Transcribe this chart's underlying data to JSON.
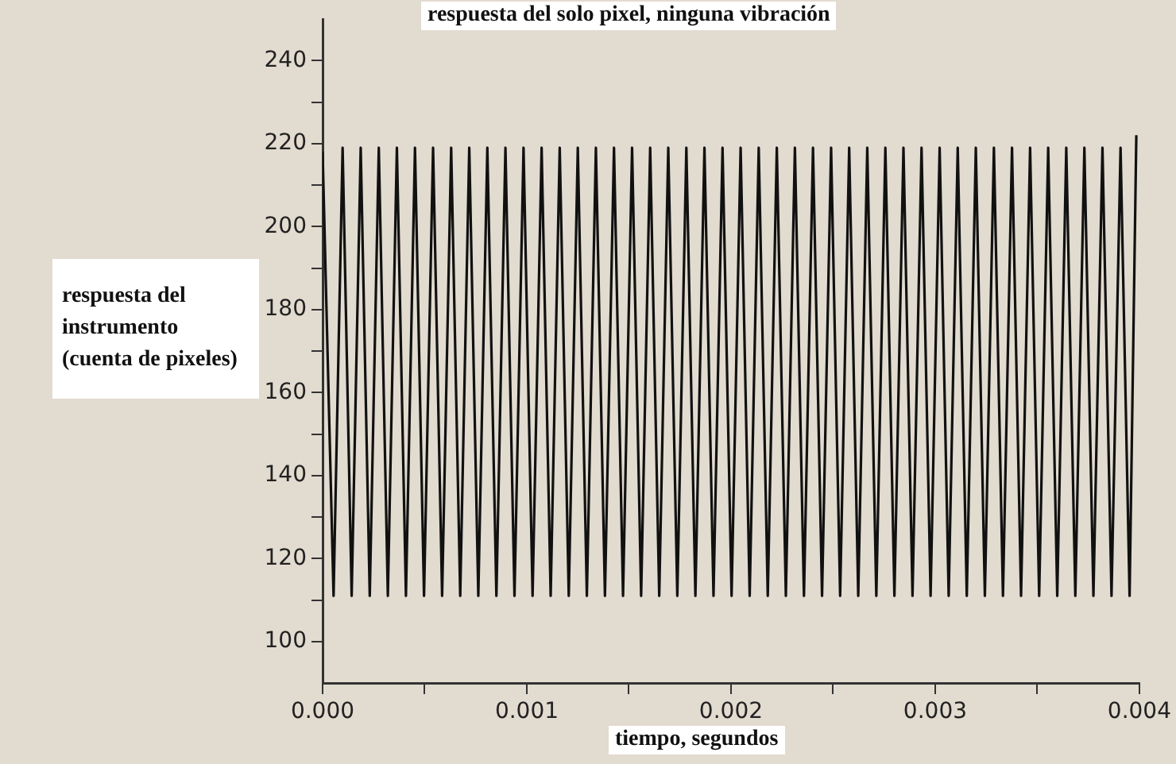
{
  "chart_data": {
    "type": "line",
    "title": "respuesta del solo pixel, ninguna vibración",
    "xlabel": "tiempo, segundos",
    "ylabel": "respuesta del instrumento (cuenta de pixeles)",
    "x": [
      0,
      5.37e-05,
      9.8e-05,
      0.0001423,
      0.0001866,
      0.0002309,
      0.0002752,
      0.0003195,
      0.0003638,
      0.0004081,
      0.0004524,
      0.0004967,
      0.000541,
      0.0005853,
      0.0006296,
      0.0006739,
      0.0007182,
      0.0007625,
      0.0008068,
      0.0008511,
      0.0008954,
      0.0009397,
      0.000984,
      0.0010283,
      0.0010726,
      0.0011169,
      0.0011612,
      0.0012055,
      0.0012498,
      0.0012941,
      0.0013384,
      0.0013827,
      0.001427,
      0.0014713,
      0.0015156,
      0.0015599,
      0.0016042,
      0.0016485,
      0.0016928,
      0.0017371,
      0.0017814,
      0.0018257,
      0.00187,
      0.0019143,
      0.0019586,
      0.0020029,
      0.0020472,
      0.0020915,
      0.0021358,
      0.0021801,
      0.0022244,
      0.0022687,
      0.002313,
      0.0023573,
      0.0024016,
      0.0024459,
      0.0024902,
      0.0025345,
      0.0025788,
      0.0026231,
      0.0026674,
      0.0027117,
      0.002756,
      0.0028003,
      0.0028446,
      0.0028889,
      0.0029332,
      0.0029775,
      0.0030218,
      0.0030661,
      0.0031104,
      0.0031547,
      0.003199,
      0.0032433,
      0.0032876,
      0.0033319,
      0.0033762,
      0.0034205,
      0.0034648,
      0.0035091,
      0.0035534,
      0.0035977,
      0.003642,
      0.0036863,
      0.0037306,
      0.0037749,
      0.0038192,
      0.0038635,
      0.0039078,
      0.003952,
      0.003985
    ],
    "values": [
      218,
      111,
      219,
      111,
      219,
      111,
      219,
      111,
      219,
      111,
      219,
      111,
      219,
      111,
      219,
      111,
      219,
      111,
      219,
      111,
      219,
      111,
      219,
      111,
      219,
      111,
      219,
      111,
      219,
      111,
      219,
      111,
      219,
      111,
      219,
      111,
      219,
      111,
      219,
      111,
      219,
      111,
      219,
      111,
      219,
      111,
      219,
      111,
      219,
      111,
      219,
      111,
      219,
      111,
      219,
      111,
      219,
      111,
      219,
      111,
      219,
      111,
      219,
      111,
      219,
      111,
      219,
      111,
      219,
      111,
      219,
      111,
      219,
      111,
      219,
      111,
      219,
      111,
      219,
      111,
      219,
      111,
      219,
      111,
      219,
      111,
      219,
      111,
      219,
      111,
      222
    ],
    "color": "#111111",
    "marker": "none",
    "line_style": "solid",
    "xlim": [
      0,
      0.004
    ],
    "xticks": [
      {
        "value": 0,
        "label": "0.000"
      },
      {
        "value": 0.0005,
        "label": null
      },
      0.001,
      {
        "value": 0.0015,
        "label": null
      },
      0.002,
      {
        "value": 0.0025,
        "label": null
      },
      0.003,
      {
        "value": 0.0035,
        "label": null
      },
      0.004
    ],
    "ylim": [
      90,
      250
    ],
    "yticks": [
      100,
      {
        "value": 110,
        "label": null
      },
      120,
      {
        "value": 130,
        "label": null
      },
      140,
      {
        "value": 150,
        "label": null
      },
      160,
      {
        "value": 170,
        "label": null
      },
      180,
      {
        "value": 190,
        "label": null
      },
      200,
      {
        "value": 210,
        "label": null
      },
      220,
      {
        "value": 230,
        "label": null
      },
      240
    ]
  }
}
